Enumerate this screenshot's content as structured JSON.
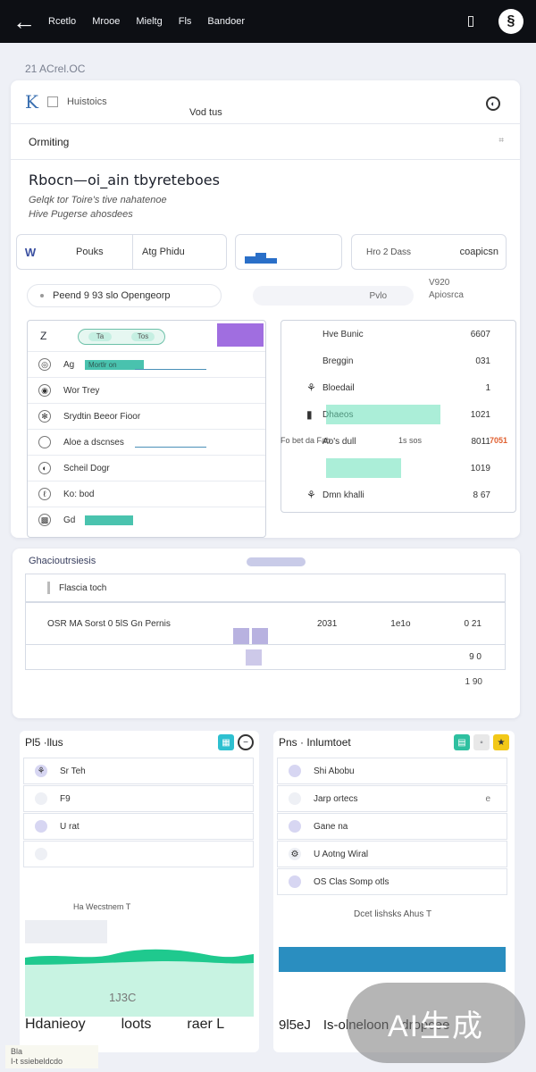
{
  "topbar": {
    "tabs": [
      "Rcetlo",
      "Mrooe",
      "Mieltg",
      "Fls",
      "Bandoer"
    ],
    "avatar_glyph": "§"
  },
  "breadcrumb": "21 ACrel.OC",
  "card": {
    "search_text": "Huistoics",
    "tab_label": "Vod tus",
    "section_label": "Ormiting",
    "hero_title": "Rbocn—oi_ain tbyreteboes",
    "hero_sub": [
      "Gelqk tor Toire's tive nahatenoe",
      "Hive Pugerse ahosdees"
    ],
    "stat1": {
      "logo": "W",
      "c1": "Pouks",
      "c2": "Atg Phidu"
    },
    "stat2_bars": [
      8,
      12,
      6
    ],
    "stat3": {
      "left": "Hro 2 Dass",
      "right": "coapicsn"
    },
    "pill_a": "Peend 9 93 slo Opengeorp",
    "pill_b": "Pvlo",
    "pill_c": [
      "V920",
      "Apiosrca"
    ]
  },
  "left_panel": {
    "head_glyph": "Z",
    "toggle": [
      "Ta",
      "Tos"
    ],
    "rows": [
      {
        "icon": "◎",
        "label": "Ag",
        "fill": 0.55,
        "chip": "Mortlr on"
      },
      {
        "icon": "◉",
        "label": "Wor Trey",
        "fill": 0,
        "chip": ""
      },
      {
        "icon": "✻",
        "label": "Srydtin Beeor Fioor",
        "fill": 0,
        "chip": ""
      },
      {
        "icon": "",
        "label": "Aloe  a dscnses",
        "fill": 0,
        "chip": ""
      },
      {
        "icon": "◐",
        "label": "Scheil Dogr",
        "fill": 0,
        "chip": ""
      },
      {
        "icon": "ℓ",
        "label": "Ko: bod",
        "fill": 0,
        "chip": ""
      },
      {
        "icon": "▩",
        "label": "Gd",
        "fill": 0.45,
        "chip": ""
      }
    ]
  },
  "right_panel": {
    "rows": [
      {
        "icon": "",
        "label": "Hve Bunic",
        "value": "6607"
      },
      {
        "icon": "",
        "label": "Breggin",
        "value": "031"
      },
      {
        "icon": "⚘",
        "label": "Bloedail",
        "value": "1"
      },
      {
        "icon": "▮",
        "label": "Dhaeos",
        "value": "1021"
      },
      {
        "icon": "",
        "label": "Ao's dull",
        "value": "8011"
      },
      {
        "icon": "",
        "label": "",
        "value": "1019"
      },
      {
        "icon": "⚘",
        "label": "Dmn khalli",
        "value": "8 67"
      }
    ],
    "foot_left": "Fo bet da Fab",
    "foot_mid": "1s  sos",
    "foot_right": "7051"
  },
  "section2": {
    "title": "Ghacioutrsiesis",
    "badge": "",
    "row1": "Flascia toch",
    "row2_label": "OSR MA Sorst 0 5lS Gn Pernis",
    "row2_values": [
      "2031",
      "1e1o",
      "0 21"
    ],
    "row3_value": "9 0",
    "row4_value": "1 90"
  },
  "bottom_left": {
    "title": "Pl5  ·llus",
    "rows": [
      {
        "icon": "⚘",
        "label": "Sr Teh",
        "end": ""
      },
      {
        "icon": "",
        "label": "F9",
        "end": ""
      },
      {
        "icon": "",
        "label": "U rat",
        "end": ""
      },
      {
        "icon": "",
        "label": "",
        "end": ""
      }
    ],
    "mid_text": "Ha Wecstnem T",
    "value": "1J3C",
    "footer": [
      "Hdanieoy",
      "loots",
      "raer L"
    ]
  },
  "bottom_right": {
    "title": "Pns · Inlumtoet",
    "rows": [
      {
        "icon": "",
        "label": "Shi Abobu",
        "end": ""
      },
      {
        "icon": "",
        "label": "Jarp ortecs",
        "end": "e"
      },
      {
        "icon": "",
        "label": "Gane na",
        "end": ""
      },
      {
        "icon": "⚙",
        "label": "U Aotng Wiral",
        "end": ""
      },
      {
        "icon": "",
        "label": "OS Clas Somp otls",
        "end": ""
      }
    ],
    "mid_text": "Dcet lishsks Ahus T",
    "footer": [
      "9l5eJ",
      "Is-olneloon",
      "dropcee"
    ]
  },
  "watermark": "AI生成",
  "bottom_tag": [
    "Bla",
    "I-t ssiebeldcdo"
  ],
  "colors": {
    "topbar": "#0d0f14",
    "accent_teal": "#2ab8a0",
    "accent_purple": "#a06ee0",
    "accent_blue": "#2a6fc8",
    "chart_green": "#1fc98e"
  }
}
